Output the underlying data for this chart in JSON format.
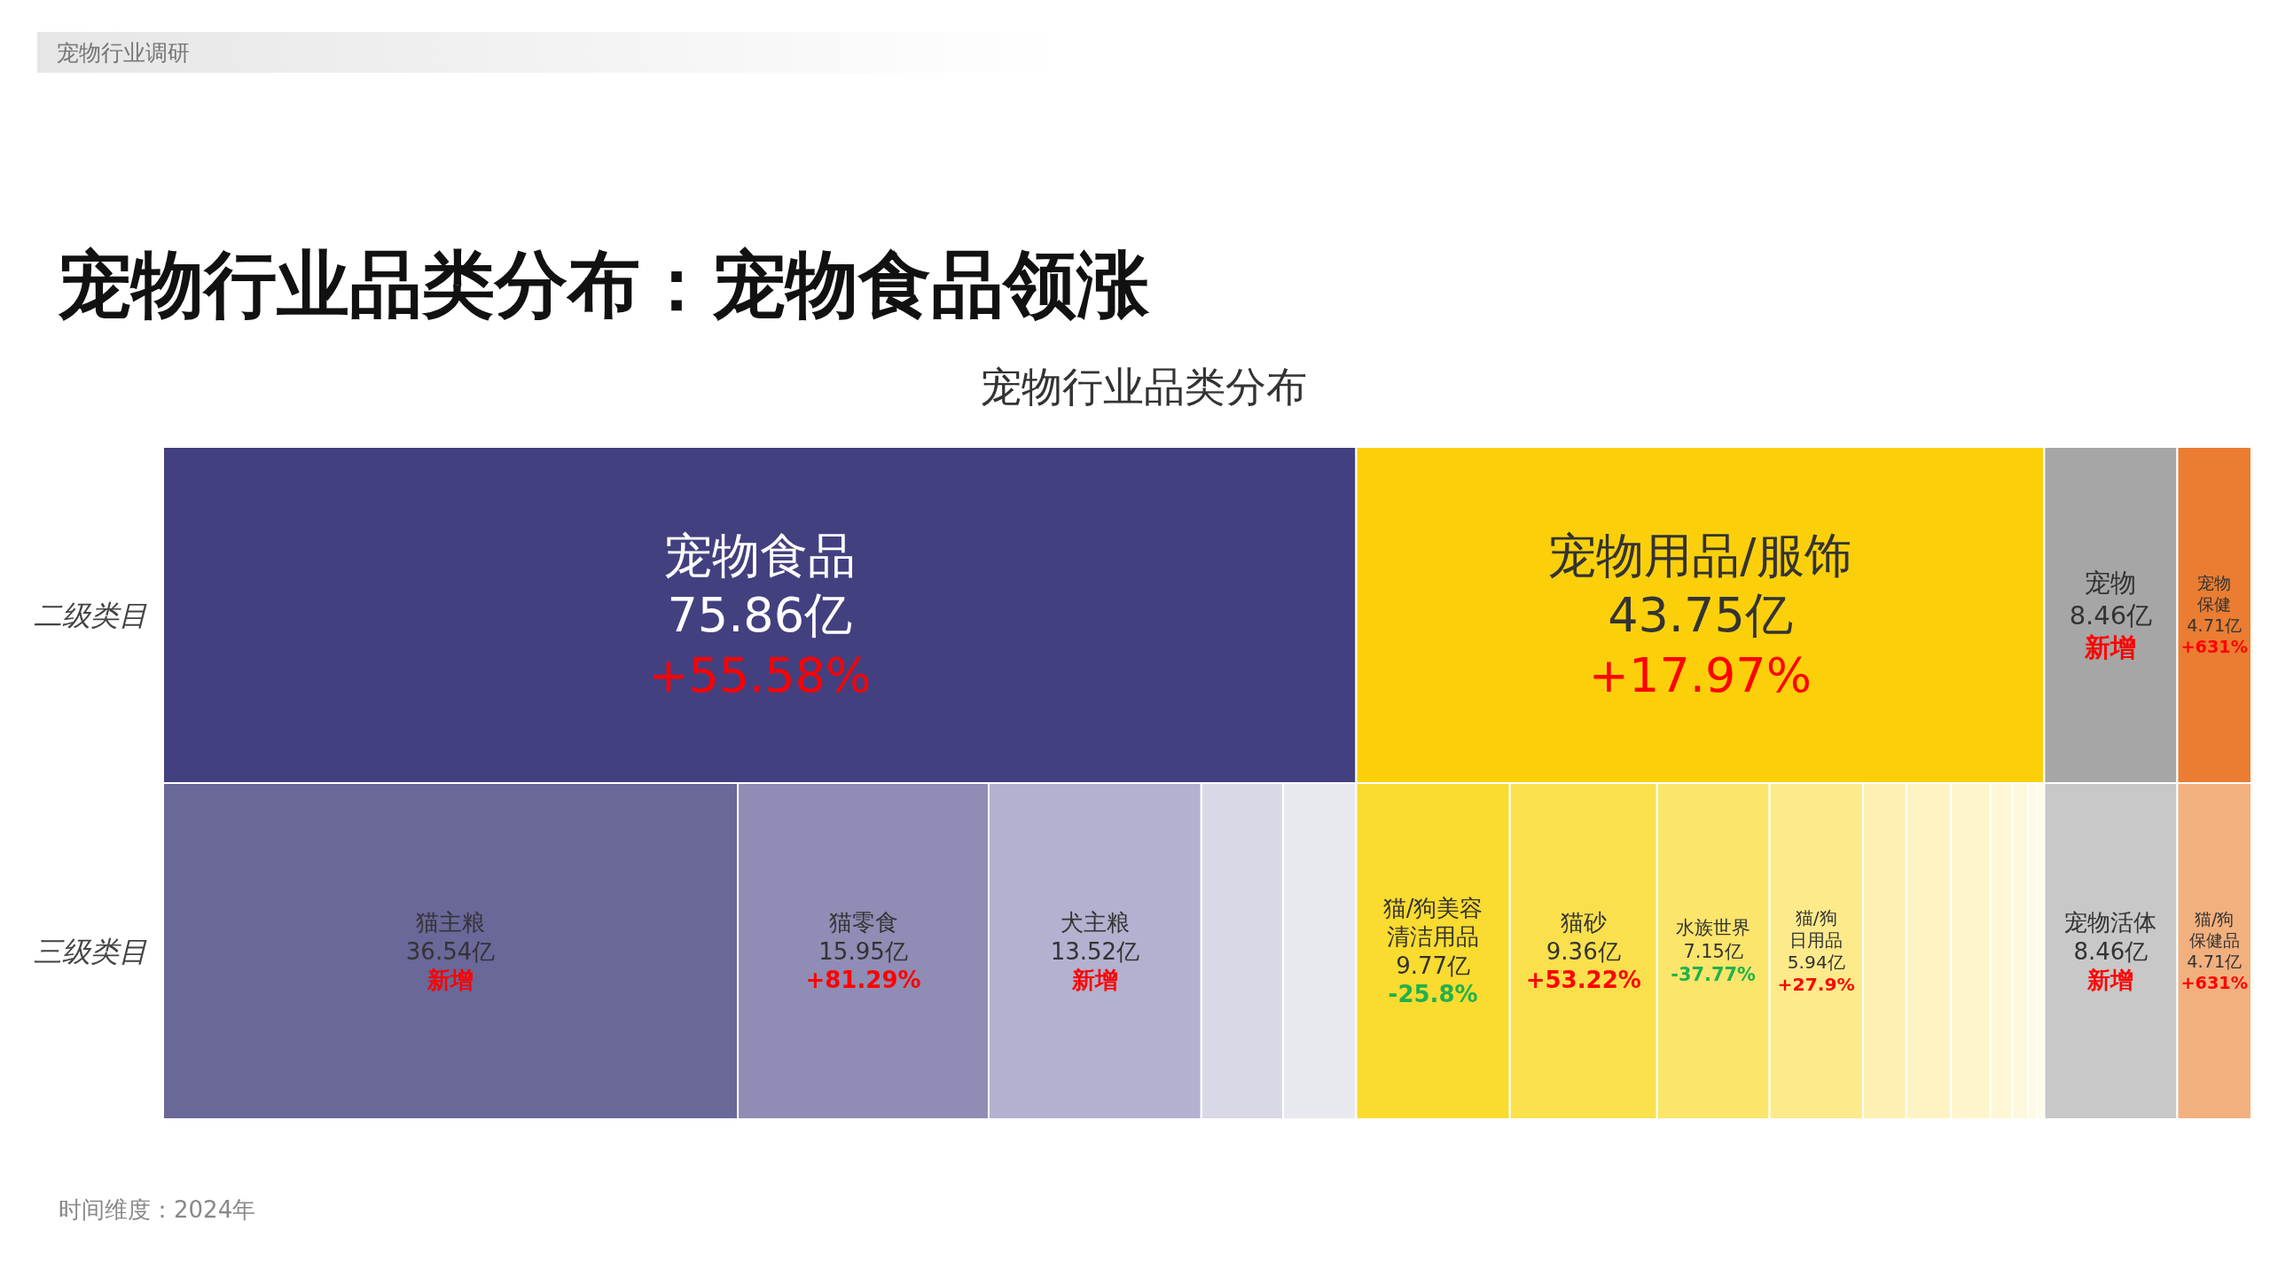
{
  "chart_data": {
    "type": "bar",
    "orientation": "horizontal",
    "stacked": true,
    "title": "宠物行业品类分布：宠物食品领涨",
    "subtitle": "宠物行业品类分布",
    "categories": [
      "二级类目",
      "三级类目"
    ],
    "tick_labels": "y",
    "annotations": [
      "宠物行业调研",
      "时间维度：2024年"
    ],
    "series": [
      {
        "color": "#434080",
        "values": [
          75.86,
          null
        ],
        "value_labels": [
          "宠物食品75.86亿+55.58%",
          null
        ]
      },
      {
        "color": "#fbd00a",
        "values": [
          43.75,
          null
        ],
        "value_labels": [
          "宠物用品/服饰43.75亿+17.97%",
          null
        ]
      },
      {
        "color": "#a6a6a6",
        "values": [
          8.46,
          null
        ],
        "value_labels": [
          "宠物8.46亿新增",
          null
        ]
      },
      {
        "color": "#ea7d32",
        "values": [
          4.71,
          null
        ],
        "value_labels": [
          "宠物保健4.71亿+631%",
          null
        ]
      },
      {
        "color": "#6a6799",
        "values": [
          null,
          36.54
        ],
        "value_labels": [
          null,
          "猫主粮36.54亿新增"
        ]
      },
      {
        "color": "#8f8db5",
        "values": [
          null,
          15.95
        ],
        "value_labels": [
          null,
          "猫零食15.95亿+81.29%"
        ]
      },
      {
        "color": "#b2b1cf",
        "values": [
          null,
          13.52
        ],
        "value_labels": [
          null,
          "犬主粮13.52亿新增"
        ]
      },
      {
        "color": "#d9d8e6",
        "values": [
          null,
          5.2
        ],
        "value_labels": [
          null,
          null
        ]
      },
      {
        "color": "#e8e8ef",
        "values": [
          null,
          4.65
        ],
        "value_labels": [
          null,
          null
        ]
      },
      {
        "color": "#fadb2f",
        "values": [
          null,
          9.77
        ],
        "value_labels": [
          null,
          "猫/狗美容清洁用品9.77亿-25.8%"
        ]
      },
      {
        "color": "#fbe04d",
        "values": [
          null,
          9.36
        ],
        "value_labels": [
          null,
          "猫砂9.36亿+53.22%"
        ]
      },
      {
        "color": "#fce56b",
        "values": [
          null,
          7.15
        ],
        "value_labels": [
          null,
          "水族世界7.15亿-37.77%"
        ]
      },
      {
        "color": "#fdea8b",
        "values": [
          null,
          5.94
        ],
        "value_labels": [
          null,
          "猫/狗日用品5.94亿+27.9%"
        ]
      },
      {
        "color": "#fdf0b2",
        "values": [
          null,
          2.76
        ],
        "value_labels": [
          null,
          null
        ]
      },
      {
        "color": "#fef3c2",
        "values": [
          null,
          2.85
        ],
        "value_labels": [
          null,
          null
        ]
      },
      {
        "color": "#fef5cc",
        "values": [
          null,
          2.5
        ],
        "value_labels": [
          null,
          null
        ]
      },
      {
        "color": "#fef7d6",
        "values": [
          null,
          1.4
        ],
        "value_labels": [
          null,
          null
        ]
      },
      {
        "color": "#fef8dc",
        "values": [
          null,
          1.0
        ],
        "value_labels": [
          null,
          null
        ]
      },
      {
        "color": "#fffae2",
        "values": [
          null,
          0.55
        ],
        "value_labels": [
          null,
          null
        ]
      },
      {
        "color": "#fffbe8",
        "values": [
          null,
          0.47
        ],
        "value_labels": [
          null,
          null
        ]
      },
      {
        "color": "#c8c8c8",
        "values": [
          null,
          8.46
        ],
        "value_labels": [
          null,
          "宠物活体8.46亿新增"
        ]
      },
      {
        "color": "#f2b07f",
        "values": [
          null,
          4.71
        ],
        "value_labels": [
          null,
          "猫/狗保健品4.71亿+631%"
        ]
      }
    ]
  }
}
